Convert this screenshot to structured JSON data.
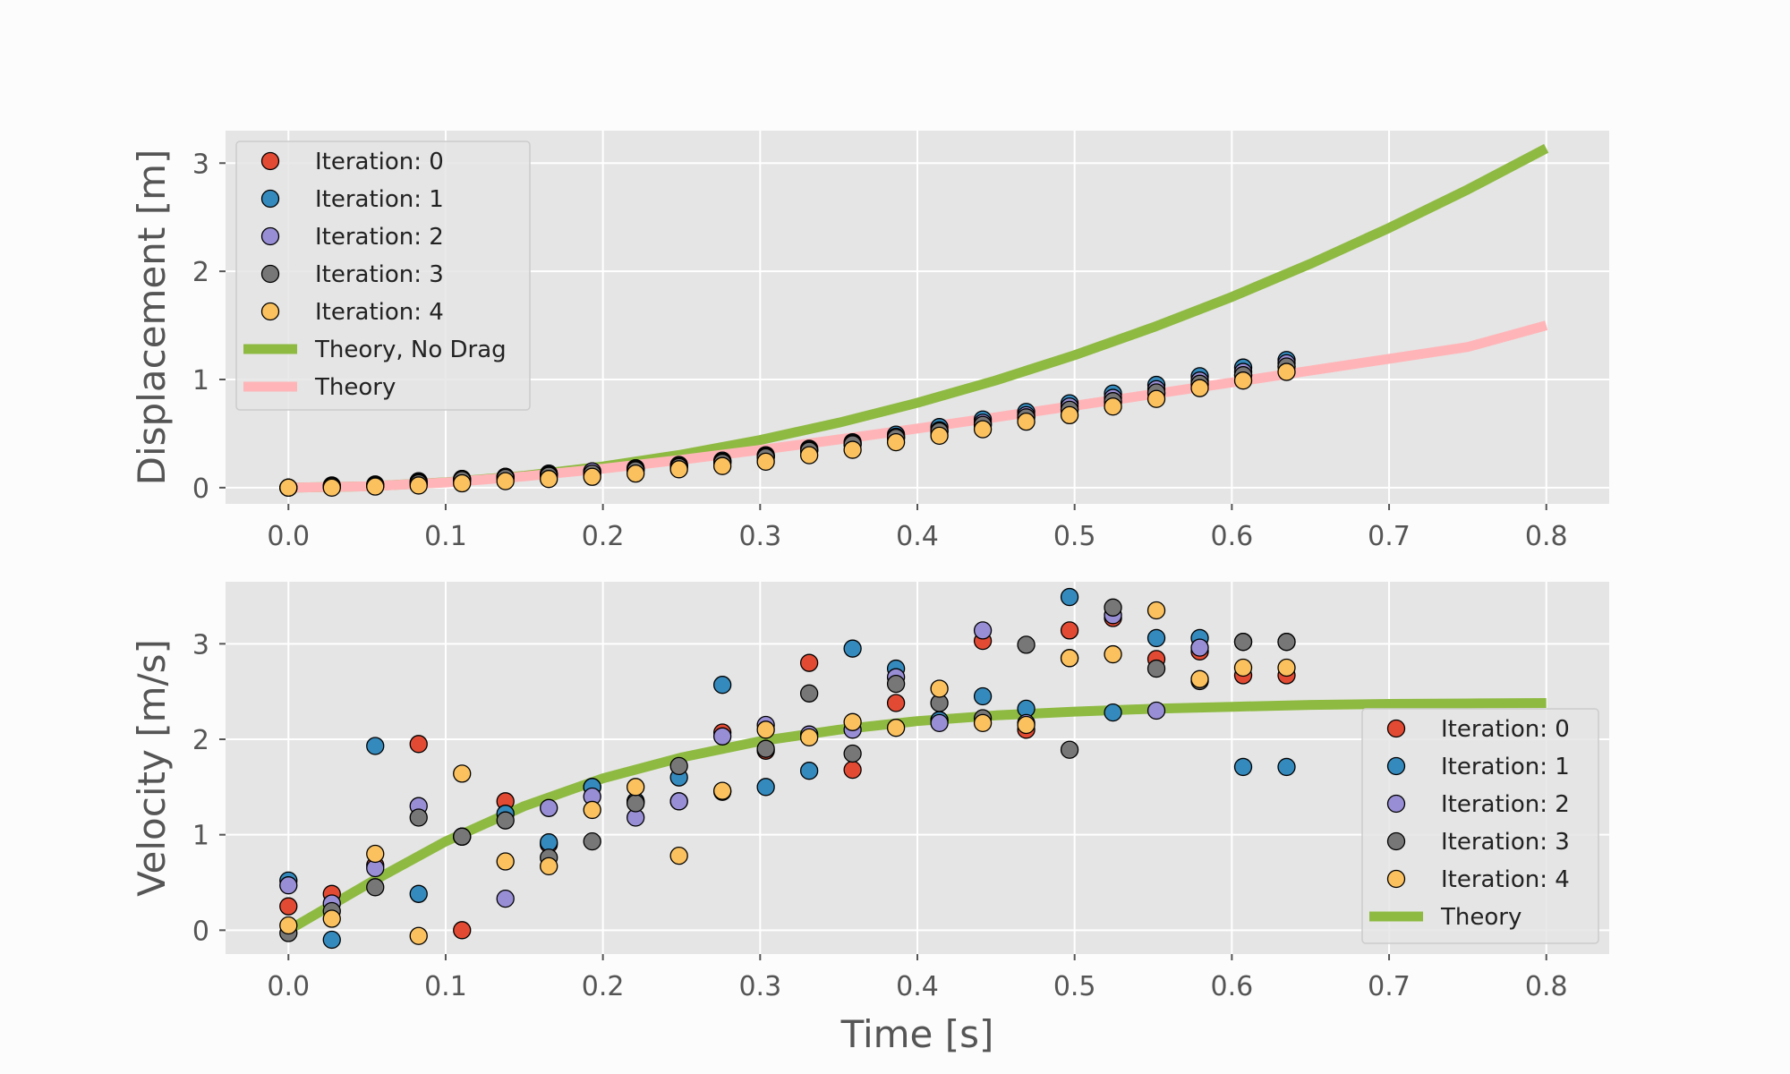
{
  "colors": {
    "figure_bg": "#FCFCFC",
    "axes_bg": "#E5E5E5",
    "grid": "#FFFFFF",
    "tick": "#555555",
    "legend_bg": "#E5E5E5",
    "legend_border": "#CCCCCC",
    "marker_edge": "#000000"
  },
  "chart_data": [
    {
      "type": "scatter",
      "title": "",
      "xlabel": "",
      "ylabel": "Displacement [m]",
      "xlim": [
        -0.04,
        0.84
      ],
      "ylim": [
        -0.15,
        3.3
      ],
      "xticks": [
        0.0,
        0.1,
        0.2,
        0.3,
        0.4,
        0.5,
        0.6,
        0.7,
        0.8
      ],
      "xtick_labels": [
        "0.0",
        "0.1",
        "0.2",
        "0.3",
        "0.4",
        "0.5",
        "0.6",
        "0.7",
        "0.8"
      ],
      "yticks": [
        0,
        1,
        2,
        3
      ],
      "ytick_labels": [
        "0",
        "1",
        "2",
        "3"
      ],
      "grid": true,
      "legend_position": "top-left",
      "x": [
        0.0,
        0.0276,
        0.0552,
        0.0828,
        0.1104,
        0.138,
        0.1656,
        0.1932,
        0.2208,
        0.2484,
        0.276,
        0.3036,
        0.3312,
        0.3588,
        0.3864,
        0.414,
        0.4416,
        0.4692,
        0.4968,
        0.5244,
        0.552,
        0.5796,
        0.6072,
        0.6348
      ],
      "series": [
        {
          "name": "Iteration:  0",
          "kind": "scatter",
          "color": "#E24A33",
          "y": [
            0.0,
            0.01,
            0.02,
            0.04,
            0.07,
            0.09,
            0.12,
            0.14,
            0.17,
            0.2,
            0.24,
            0.29,
            0.34,
            0.4,
            0.46,
            0.52,
            0.58,
            0.65,
            0.72,
            0.79,
            0.87,
            0.95,
            1.04,
            1.12
          ]
        },
        {
          "name": "Iteration:  1",
          "kind": "scatter",
          "color": "#348ABD",
          "y": [
            0.0,
            0.02,
            0.03,
            0.06,
            0.08,
            0.1,
            0.13,
            0.15,
            0.18,
            0.21,
            0.25,
            0.3,
            0.36,
            0.42,
            0.49,
            0.56,
            0.63,
            0.7,
            0.78,
            0.87,
            0.95,
            1.03,
            1.11,
            1.18
          ]
        },
        {
          "name": "Iteration:  2",
          "kind": "scatter",
          "color": "#988ED5",
          "y": [
            0.0,
            0.01,
            0.02,
            0.05,
            0.08,
            0.1,
            0.12,
            0.15,
            0.17,
            0.2,
            0.24,
            0.29,
            0.35,
            0.41,
            0.47,
            0.53,
            0.6,
            0.67,
            0.75,
            0.83,
            0.91,
            0.99,
            1.07,
            1.15
          ]
        },
        {
          "name": "Iteration:  3",
          "kind": "scatter",
          "color": "#777777",
          "y": [
            0.0,
            0.01,
            0.02,
            0.04,
            0.07,
            0.09,
            0.11,
            0.13,
            0.16,
            0.19,
            0.23,
            0.28,
            0.34,
            0.4,
            0.46,
            0.52,
            0.58,
            0.65,
            0.72,
            0.8,
            0.88,
            0.96,
            1.04,
            1.12
          ]
        },
        {
          "name": "Iteration:  4",
          "kind": "scatter",
          "color": "#FBC15E",
          "y": [
            0.0,
            0.0,
            0.01,
            0.02,
            0.04,
            0.06,
            0.08,
            0.1,
            0.13,
            0.17,
            0.2,
            0.24,
            0.3,
            0.35,
            0.42,
            0.48,
            0.54,
            0.61,
            0.67,
            0.75,
            0.82,
            0.92,
            0.99,
            1.07
          ]
        },
        {
          "name": "Theory, No Drag",
          "kind": "line",
          "color": "#8EBA42",
          "x": [
            0.0,
            0.05,
            0.1,
            0.15,
            0.2,
            0.25,
            0.3,
            0.35,
            0.4,
            0.45,
            0.5,
            0.55,
            0.6,
            0.65,
            0.7,
            0.75,
            0.8
          ],
          "y": [
            0.0,
            0.012,
            0.049,
            0.11,
            0.196,
            0.306,
            0.441,
            0.6,
            0.784,
            0.992,
            1.225,
            1.482,
            1.764,
            2.07,
            2.401,
            2.756,
            3.136
          ]
        },
        {
          "name": "Theory",
          "kind": "line",
          "color": "#FFB5B8",
          "x": [
            0.0,
            0.05,
            0.1,
            0.15,
            0.2,
            0.25,
            0.3,
            0.35,
            0.4,
            0.45,
            0.5,
            0.55,
            0.6,
            0.65,
            0.7,
            0.75,
            0.8
          ],
          "y": [
            0.0,
            0.012,
            0.048,
            0.104,
            0.175,
            0.258,
            0.349,
            0.446,
            0.547,
            0.651,
            0.758,
            0.865,
            0.973,
            1.082,
            1.191,
            1.3,
            1.5
          ]
        }
      ]
    },
    {
      "type": "scatter",
      "title": "",
      "xlabel": "Time [s]",
      "ylabel": "Velocity [m/s]",
      "xlim": [
        -0.04,
        0.84
      ],
      "ylim": [
        -0.25,
        3.65
      ],
      "xticks": [
        0.0,
        0.1,
        0.2,
        0.3,
        0.4,
        0.5,
        0.6,
        0.7,
        0.8
      ],
      "xtick_labels": [
        "0.0",
        "0.1",
        "0.2",
        "0.3",
        "0.4",
        "0.5",
        "0.6",
        "0.7",
        "0.8"
      ],
      "yticks": [
        0,
        1,
        2,
        3
      ],
      "ytick_labels": [
        "0",
        "1",
        "2",
        "3"
      ],
      "grid": true,
      "legend_position": "center-right",
      "x": [
        0.0,
        0.0276,
        0.0552,
        0.0828,
        0.1104,
        0.138,
        0.1656,
        0.1932,
        0.2208,
        0.2484,
        0.276,
        0.3036,
        0.3312,
        0.3588,
        0.3864,
        0.414,
        0.4416,
        0.4692,
        0.4968,
        0.5244,
        0.552,
        0.5796,
        0.6072,
        0.6348
      ],
      "series": [
        {
          "name": "Iteration:  0",
          "kind": "scatter",
          "color": "#E24A33",
          "y": [
            0.25,
            0.38,
            0.68,
            1.95,
            0.0,
            1.35,
            0.9,
            1.5,
            1.35,
            1.35,
            2.07,
            1.88,
            2.8,
            1.68,
            2.38,
            2.2,
            3.03,
            2.1,
            3.14,
            3.27,
            2.84,
            2.92,
            2.67,
            2.67
          ]
        },
        {
          "name": "Iteration:  1",
          "kind": "scatter",
          "color": "#348ABD",
          "y": [
            0.52,
            -0.1,
            1.93,
            0.38,
            0.98,
            1.22,
            0.92,
            1.5,
            1.35,
            1.6,
            2.57,
            1.5,
            1.67,
            2.95,
            2.74,
            2.2,
            2.45,
            2.32,
            3.49,
            2.28,
            3.06,
            3.06,
            1.71,
            1.71
          ]
        },
        {
          "name": "Iteration:  2",
          "kind": "scatter",
          "color": "#988ED5",
          "y": [
            0.47,
            0.28,
            0.65,
            1.3,
            0.98,
            0.33,
            1.28,
            1.4,
            1.18,
            1.35,
            2.03,
            2.15,
            2.05,
            2.1,
            2.65,
            2.17,
            3.14,
            2.17,
            2.85,
            3.3,
            2.3,
            2.96,
            3.02,
            3.02
          ]
        },
        {
          "name": "Iteration:  3",
          "kind": "scatter",
          "color": "#777777",
          "y": [
            -0.03,
            0.2,
            0.45,
            1.18,
            0.98,
            1.15,
            0.76,
            0.93,
            1.33,
            1.72,
            1.45,
            1.9,
            2.48,
            1.85,
            2.58,
            2.38,
            2.22,
            2.99,
            1.89,
            3.38,
            2.74,
            2.61,
            3.02,
            3.02
          ]
        },
        {
          "name": "Iteration:  4",
          "kind": "scatter",
          "color": "#FBC15E",
          "y": [
            0.05,
            0.12,
            0.8,
            -0.06,
            1.64,
            0.72,
            0.67,
            1.26,
            1.5,
            0.78,
            1.46,
            2.1,
            2.02,
            2.18,
            2.12,
            2.53,
            2.17,
            2.15,
            2.85,
            2.89,
            3.35,
            2.63,
            2.75,
            2.75
          ]
        },
        {
          "name": "Theory",
          "kind": "line",
          "color": "#8EBA42",
          "x": [
            0.0,
            0.05,
            0.1,
            0.15,
            0.2,
            0.25,
            0.3,
            0.35,
            0.4,
            0.45,
            0.5,
            0.55,
            0.6,
            0.65,
            0.7,
            0.75,
            0.8
          ],
          "y": [
            0.0,
            0.48,
            0.93,
            1.3,
            1.59,
            1.81,
            1.98,
            2.1,
            2.19,
            2.25,
            2.29,
            2.32,
            2.34,
            2.36,
            2.37,
            2.375,
            2.38
          ]
        }
      ]
    }
  ]
}
